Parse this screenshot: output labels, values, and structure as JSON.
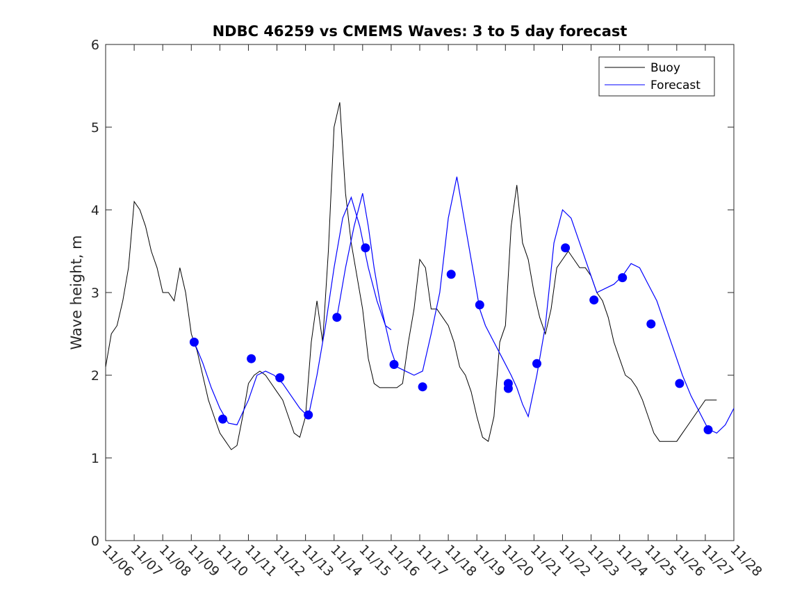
{
  "chart_data": {
    "type": "line",
    "title": "NDBC 46259 vs CMEMS Waves: 3 to 5 day forecast",
    "xlabel": "",
    "ylabel": "Wave height, m",
    "xlim": [
      0,
      22
    ],
    "ylim": [
      0,
      6
    ],
    "grid": false,
    "legend_position": "top-right",
    "x_tick_labels": [
      "11/06",
      "11/07",
      "11/08",
      "11/09",
      "11/10",
      "11/11",
      "11/12",
      "11/13",
      "11/14",
      "11/15",
      "11/16",
      "11/17",
      "11/18",
      "11/19",
      "11/20",
      "11/21",
      "11/22",
      "11/23",
      "11/24",
      "11/25",
      "11/26",
      "11/27",
      "11/28"
    ],
    "y_ticks": [
      0,
      1,
      2,
      3,
      4,
      5,
      6
    ],
    "x_units": "days since 11/06",
    "colors": {
      "buoy": "#000000",
      "forecast": "#0000ff",
      "axis": "#262626"
    },
    "series": [
      {
        "name": "Buoy",
        "color": "#000000",
        "x": [
          0,
          0.2,
          0.4,
          0.6,
          0.8,
          1.0,
          1.2,
          1.4,
          1.6,
          1.8,
          2.0,
          2.2,
          2.4,
          2.6,
          2.8,
          3.0,
          3.2,
          3.4,
          3.6,
          3.8,
          4.0,
          4.2,
          4.4,
          4.6,
          4.8,
          5.0,
          5.2,
          5.4,
          5.6,
          5.8,
          6.0,
          6.2,
          6.4,
          6.6,
          6.8,
          7.0,
          7.2,
          7.4,
          7.6,
          7.8,
          8.0,
          8.2,
          8.4,
          8.6,
          8.8,
          9.0,
          9.2,
          9.4,
          9.6,
          9.8,
          10.0,
          10.2,
          10.4,
          10.6,
          10.8,
          11.0,
          11.2,
          11.4,
          11.6,
          11.8,
          12.0,
          12.2,
          12.4,
          12.6,
          12.8,
          13.0,
          13.2,
          13.4,
          13.6,
          13.8,
          14.0,
          14.2,
          14.4,
          14.6,
          14.8,
          15.0,
          15.2,
          15.4,
          15.6,
          15.8,
          16.0,
          16.2,
          16.4,
          16.6,
          16.8,
          17.0,
          17.2,
          17.4,
          17.6,
          17.8,
          18.0,
          18.2,
          18.4,
          18.6,
          18.8,
          19.0,
          19.2,
          19.4,
          19.6,
          19.8,
          20.0,
          20.2,
          20.4,
          20.6,
          20.8,
          21.0,
          21.2,
          21.4
        ],
        "y": [
          2.1,
          2.5,
          2.6,
          2.9,
          3.3,
          4.1,
          4.0,
          3.8,
          3.5,
          3.3,
          3.0,
          3.0,
          2.9,
          3.3,
          3.0,
          2.5,
          2.3,
          2.0,
          1.7,
          1.5,
          1.3,
          1.2,
          1.1,
          1.15,
          1.5,
          1.9,
          2.0,
          2.05,
          2.0,
          1.9,
          1.8,
          1.7,
          1.5,
          1.3,
          1.25,
          1.5,
          2.4,
          2.9,
          2.4,
          3.5,
          5.0,
          5.3,
          4.2,
          3.6,
          3.2,
          2.8,
          2.2,
          1.9,
          1.85,
          1.85,
          1.85,
          1.85,
          1.9,
          2.4,
          2.8,
          3.4,
          3.3,
          2.8,
          2.8,
          2.7,
          2.6,
          2.4,
          2.1,
          2.0,
          1.8,
          1.5,
          1.25,
          1.2,
          1.5,
          2.4,
          2.6,
          3.8,
          4.3,
          3.6,
          3.4,
          3.0,
          2.7,
          2.5,
          2.8,
          3.3,
          3.4,
          3.5,
          3.4,
          3.3,
          3.3,
          3.2,
          3.0,
          2.9,
          2.7,
          2.4,
          2.2,
          2.0,
          1.95,
          1.85,
          1.7,
          1.5,
          1.3,
          1.2,
          1.2,
          1.2,
          1.2,
          1.3,
          1.4,
          1.5,
          1.6,
          1.7,
          1.7,
          1.7
        ]
      },
      {
        "name": "Forecast",
        "color": "#0000ff",
        "segments": [
          {
            "x": [
              3.1,
              3.4,
              3.7,
              4.0,
              4.3,
              4.6,
              5.0,
              5.3,
              5.6,
              5.9,
              6.2,
              6.5,
              6.8,
              7.1,
              7.4,
              7.7,
              8.0,
              8.3,
              8.6,
              8.9,
              9.2,
              9.5,
              9.8,
              10.0
            ],
            "y": [
              2.4,
              2.15,
              1.85,
              1.6,
              1.42,
              1.4,
              1.7,
              2.0,
              2.05,
              2.0,
              1.9,
              1.75,
              1.6,
              1.5,
              2.0,
              2.6,
              3.3,
              3.9,
              4.15,
              3.8,
              3.3,
              2.9,
              2.6,
              2.55
            ]
          },
          {
            "x": [
              8.1,
              8.4,
              8.7,
              9.0,
              9.2,
              9.4,
              9.6,
              9.8,
              10.0,
              10.2,
              10.5,
              10.8,
              11.1,
              11.4,
              11.7,
              12.0,
              12.3,
              12.6,
              12.9,
              13.1,
              13.3,
              13.6,
              13.9,
              14.2,
              14.4,
              14.6,
              14.8,
              15.1,
              15.4,
              15.7,
              16.0,
              16.3,
              16.6,
              16.9,
              17.2,
              17.5,
              17.8,
              18.1,
              18.4,
              18.7,
              19.0,
              19.3,
              19.6,
              19.9,
              20.2,
              20.5,
              20.8,
              21.1,
              21.4,
              21.7,
              22.0
            ],
            "y": [
              2.7,
              3.3,
              3.8,
              4.2,
              3.8,
              3.3,
              2.9,
              2.6,
              2.3,
              2.1,
              2.05,
              2.0,
              2.05,
              2.5,
              3.0,
              3.9,
              4.4,
              3.8,
              3.2,
              2.8,
              2.6,
              2.4,
              2.2,
              2.0,
              1.85,
              1.65,
              1.5,
              2.0,
              2.6,
              3.6,
              4.0,
              3.9,
              3.6,
              3.3,
              3.0,
              3.05,
              3.1,
              3.2,
              3.35,
              3.3,
              3.1,
              2.9,
              2.6,
              2.3,
              2.0,
              1.75,
              1.55,
              1.35,
              1.3,
              1.4,
              1.6
            ]
          }
        ]
      }
    ],
    "forecast_points": {
      "name": "Forecast",
      "color": "#0000ff",
      "x": [
        3.1,
        4.1,
        5.1,
        6.1,
        7.1,
        8.1,
        9.1,
        10.1,
        11.1,
        12.1,
        13.1,
        14.1,
        14.1,
        15.1,
        16.1,
        17.1,
        18.1,
        19.1,
        20.1,
        21.1
      ],
      "y": [
        2.4,
        1.47,
        2.2,
        1.97,
        1.52,
        2.7,
        3.54,
        2.13,
        1.86,
        3.22,
        2.85,
        1.9,
        1.84,
        2.14,
        3.54,
        2.91,
        3.18,
        2.62,
        1.9,
        1.34
      ]
    },
    "legend": [
      "Buoy",
      "Forecast"
    ]
  }
}
